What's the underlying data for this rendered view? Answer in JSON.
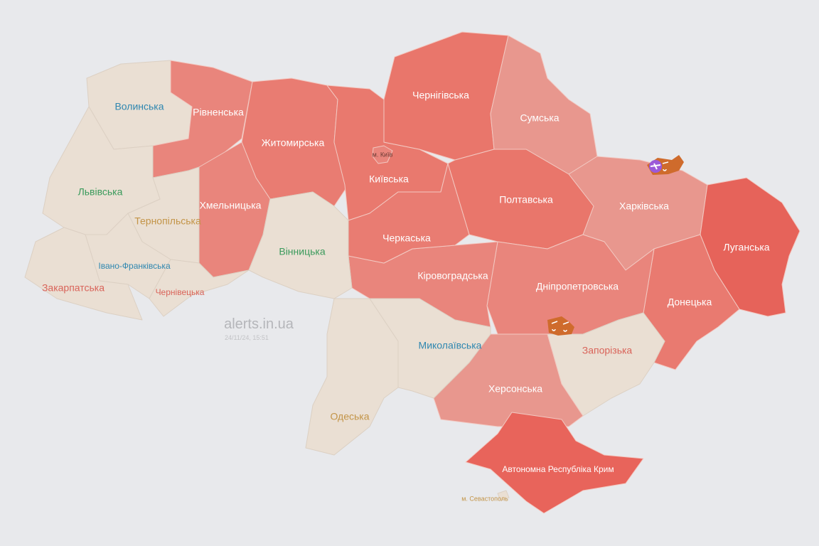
{
  "watermark": {
    "site": "alerts.in.ua",
    "timestamp": "24/11/24, 15:51"
  },
  "colors": {
    "background": "#e8e9ec",
    "calm": "#eadfd3",
    "alert": "#e9776c",
    "alert_light": "#e8978e",
    "alert_strong": "#e6635a",
    "threat_icon": "#cf6b2c",
    "aircraft_icon": "#9b59d9"
  },
  "regions": [
    {
      "id": "volynska",
      "name": "Волинська",
      "status": "calm",
      "label_color": "#2f87b0"
    },
    {
      "id": "rivnenska",
      "name": "Рівненська",
      "status": "alert",
      "label_color": "#ffffff"
    },
    {
      "id": "zhytomyrska",
      "name": "Житомирська",
      "status": "alert",
      "label_color": "#ffffff"
    },
    {
      "id": "kyivska",
      "name": "Київська",
      "status": "alert",
      "label_color": "#ffffff"
    },
    {
      "id": "kyiv-city",
      "name": "м. Київ",
      "status": "alert",
      "label_color": "#6b3a34"
    },
    {
      "id": "chernihivska",
      "name": "Чернігівська",
      "status": "alert",
      "label_color": "#ffffff"
    },
    {
      "id": "sumska",
      "name": "Сумська",
      "status": "alert",
      "label_color": "#ffffff"
    },
    {
      "id": "kharkivska",
      "name": "Харківська",
      "status": "alert",
      "label_color": "#ffffff"
    },
    {
      "id": "luhanska",
      "name": "Луганська",
      "status": "alert",
      "label_color": "#ffffff"
    },
    {
      "id": "donetska",
      "name": "Донецька",
      "status": "alert",
      "label_color": "#ffffff"
    },
    {
      "id": "poltavska",
      "name": "Полтавська",
      "status": "alert",
      "label_color": "#ffffff"
    },
    {
      "id": "dnipropetrovska",
      "name": "Дніпропетровська",
      "status": "alert",
      "label_color": "#ffffff"
    },
    {
      "id": "zaporizka",
      "name": "Запорізька",
      "status": "calm",
      "label_color": "#d9645a"
    },
    {
      "id": "khersonska",
      "name": "Херсонська",
      "status": "alert",
      "label_color": "#ffffff"
    },
    {
      "id": "crimea",
      "name": "Автономна Республіка Крим",
      "status": "alert",
      "label_color": "#ffffff"
    },
    {
      "id": "sevastopol",
      "name": "м. Севастополь",
      "status": "calm",
      "label_color": "#c39447"
    },
    {
      "id": "kirovohradska",
      "name": "Кіровоградська",
      "status": "alert",
      "label_color": "#ffffff"
    },
    {
      "id": "cherkaska",
      "name": "Черкаська",
      "status": "alert",
      "label_color": "#ffffff"
    },
    {
      "id": "khmelnytska",
      "name": "Хмельницька",
      "status": "alert",
      "label_color": "#ffffff"
    },
    {
      "id": "vinnytska",
      "name": "Вінницька",
      "status": "calm",
      "label_color": "#3a9a5b"
    },
    {
      "id": "ternopilska",
      "name": "Тернопільська",
      "status": "calm",
      "label_color": "#c39447"
    },
    {
      "id": "lvivska",
      "name": "Львівська",
      "status": "calm",
      "label_color": "#3a9a5b"
    },
    {
      "id": "ivano-frankivska",
      "name": "Івано-Франківська",
      "status": "calm",
      "label_color": "#2f87b0"
    },
    {
      "id": "zakarpatska",
      "name": "Закарпатська",
      "status": "calm",
      "label_color": "#d9645a"
    },
    {
      "id": "chernivetska",
      "name": "Чернівецька",
      "status": "calm",
      "label_color": "#d9645a"
    },
    {
      "id": "odeska",
      "name": "Одеська",
      "status": "calm",
      "label_color": "#c39447"
    },
    {
      "id": "mykolaivska",
      "name": "Миколаївська",
      "status": "calm",
      "label_color": "#2f87b0"
    }
  ],
  "threat_markers": [
    {
      "area": "Kharkiv border",
      "icons": [
        "aircraft-icon",
        "artillery-icon"
      ]
    },
    {
      "area": "Zaporizhzhia front",
      "icons": [
        "artillery-icon",
        "artillery-icon"
      ]
    }
  ]
}
